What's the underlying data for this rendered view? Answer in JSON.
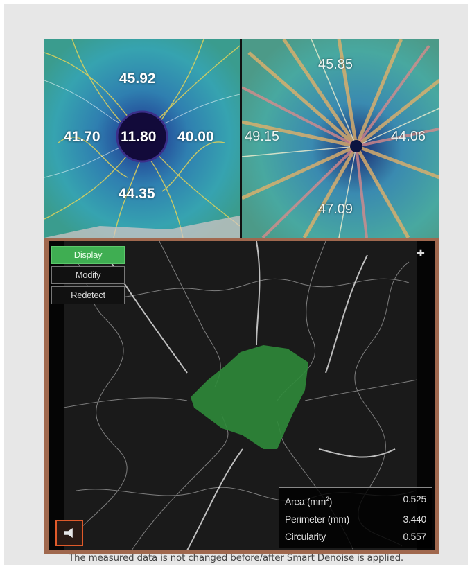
{
  "superficial_map": {
    "center_value": "11.80",
    "superior_value": "45.92",
    "nasal_value": "41.70",
    "temporal_value": "40.00",
    "inferior_value": "44.35"
  },
  "disc_map": {
    "superior_value": "45.85",
    "nasal_value": "49.15",
    "temporal_value": "44.06",
    "inferior_value": "47.09"
  },
  "angiogram": {
    "menu": [
      "Display",
      "Modify",
      "Redetect"
    ],
    "active_menu": "Display",
    "stats": [
      {
        "label": "Area (mm",
        "sup": "2",
        "label_end": ")",
        "value": "0.525"
      },
      {
        "label": "Perimeter (mm)",
        "sup": "",
        "label_end": "",
        "value": "3.440"
      },
      {
        "label": "Circularity",
        "sup": "",
        "label_end": "",
        "value": "0.557"
      }
    ],
    "faz_color": "#2f8a3a"
  },
  "caption": "The measured data is not changed before/after Smart Denoise is applied."
}
